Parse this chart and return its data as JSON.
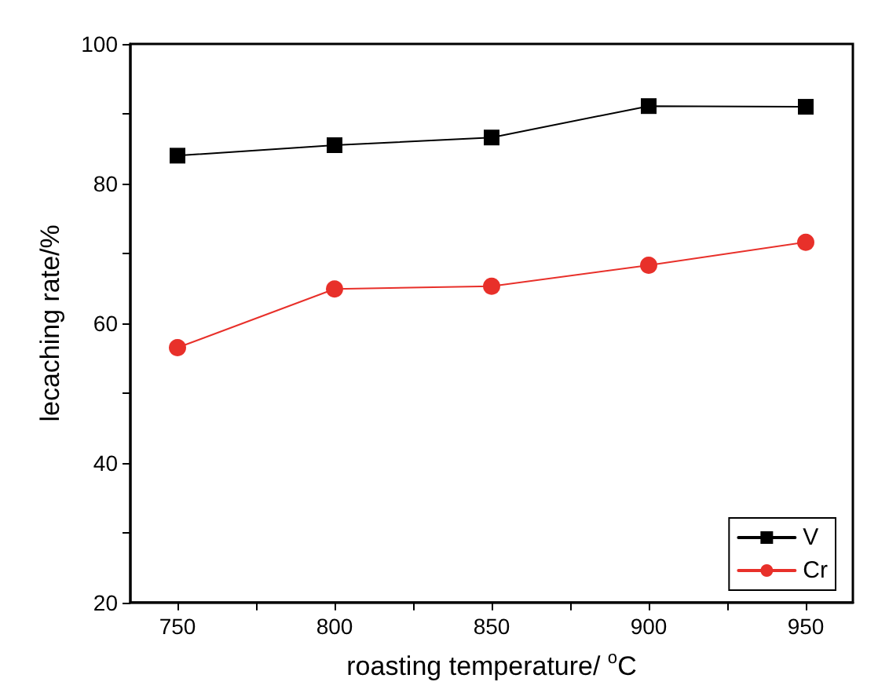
{
  "chart_data": {
    "type": "line",
    "xlabel": "roasting temperature/ $^{o}$C",
    "ylabel": "lecaching rate/%",
    "x": [
      750,
      800,
      850,
      900,
      950
    ],
    "series": [
      {
        "name": "V",
        "color": "#000000",
        "marker": "square",
        "values": [
          84.0,
          85.5,
          86.6,
          91.1,
          91.0
        ]
      },
      {
        "name": "Cr",
        "color": "#e8302a",
        "marker": "circle",
        "values": [
          56.5,
          64.9,
          65.3,
          68.3,
          71.6
        ]
      }
    ],
    "xlim": [
      735,
      965
    ],
    "xticks": [
      750,
      {
        "value": 775,
        "label": null
      },
      800,
      {
        "value": 825,
        "label": null
      },
      850,
      {
        "value": 875,
        "label": null
      },
      900,
      {
        "value": 925,
        "label": null
      },
      950
    ],
    "ylim": [
      20,
      100
    ],
    "yticks": [
      20,
      {
        "value": 30,
        "label": null
      },
      40,
      {
        "value": 50,
        "label": null
      },
      60,
      {
        "value": 70,
        "label": null
      },
      80,
      {
        "value": 90,
        "label": null
      },
      100
    ],
    "grid": false,
    "legend": "bottom right",
    "line_style": "solid"
  }
}
